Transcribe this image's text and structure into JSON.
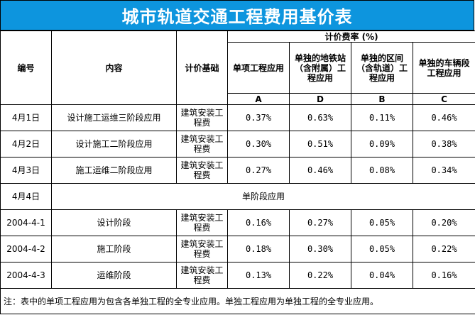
{
  "title": "城市轨道交通工程费用基价表",
  "header": {
    "col_id": "编号",
    "col_content": "内容",
    "col_basis": "计价基础",
    "rate_group": "计价费率 (%)",
    "rate_cols": [
      {
        "label": "单项工程应用",
        "code": "A"
      },
      {
        "label": "单独的地铁站（含附属）工程应用",
        "code": "D"
      },
      {
        "label": "单独的区间（含轨道）工程应用",
        "code": "B"
      },
      {
        "label": "单独的车辆段工程应用",
        "code": "C"
      }
    ]
  },
  "rows": [
    {
      "id": "4月1日",
      "content": "设计施工运维三阶段应用",
      "basis": "建筑安装工程费",
      "rates": [
        "0.37%",
        "0.63%",
        "0.11%",
        "0.46%"
      ]
    },
    {
      "id": "4月2日",
      "content": "设计施工二阶段应用",
      "basis": "建筑安装工程费",
      "rates": [
        "0.30%",
        "0.51%",
        "0.09%",
        "0.38%"
      ]
    },
    {
      "id": "4月3日",
      "content": "施工运维二阶段应用",
      "basis": "建筑安装工程费",
      "rates": [
        "0.27%",
        "0.46%",
        "0.08%",
        "0.34%"
      ]
    }
  ],
  "section_row": {
    "id": "4月4日",
    "label": "单阶段应用"
  },
  "rows2": [
    {
      "id": "2004-4-1",
      "content": "设计阶段",
      "basis": "建筑安装工程费",
      "rates": [
        "0.16%",
        "0.27%",
        "0.05%",
        "0.20%"
      ]
    },
    {
      "id": "2004-4-2",
      "content": "施工阶段",
      "basis": "建筑安装工程费",
      "rates": [
        "0.18%",
        "0.30%",
        "0.05%",
        "0.22%"
      ]
    },
    {
      "id": "2004-4-3",
      "content": "运维阶段",
      "basis": "建筑安装工程费",
      "rates": [
        "0.13%",
        "0.22%",
        "0.04%",
        "0.16%"
      ]
    }
  ],
  "note": "注：表中的单项工程应用为包含各单独工程的全专业应用。单独工程应用为单独工程的全专业应用。",
  "colors": {
    "title_bg": "#0d95de",
    "title_text": "#ffffff",
    "grid": "#000000"
  }
}
